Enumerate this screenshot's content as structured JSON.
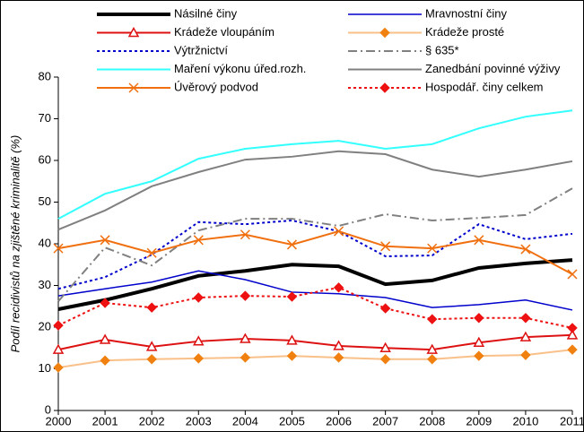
{
  "chart_data": {
    "type": "line",
    "y_label": "Podíl recidivistů na zjištěné kriminalitě (%)",
    "categories": [
      "2000",
      "2001",
      "2002",
      "2003",
      "2004",
      "2005",
      "2006",
      "2007",
      "2008",
      "2009",
      "2010",
      "2011"
    ],
    "ylim": [
      0,
      80
    ],
    "yticks": [
      0,
      10,
      20,
      30,
      40,
      50,
      60,
      70,
      80
    ],
    "grid": false,
    "series": [
      {
        "name": "Násilné činy",
        "color": "#000000",
        "width": 4,
        "dash": "solid",
        "marker": "none",
        "values": [
          24.3,
          26.5,
          29.2,
          32.3,
          33.5,
          35,
          34.6,
          30.3,
          31.2,
          34.2,
          35.3,
          36.1
        ]
      },
      {
        "name": "Mravnostní činy",
        "color": "#0000cc",
        "width": 1.5,
        "dash": "solid",
        "marker": "none",
        "values": [
          27.5,
          29.2,
          30.8,
          33.5,
          31.4,
          28.4,
          28,
          27.1,
          24.7,
          25.4,
          26.5,
          24.1
        ]
      },
      {
        "name": "Krádeže vloupáním",
        "color": "#dd1111",
        "width": 2,
        "dash": "solid",
        "marker": "triangle",
        "values": [
          14.6,
          17,
          15.3,
          16.6,
          17.2,
          16.8,
          15.5,
          15,
          14.6,
          16.3,
          17.6,
          18.1
        ]
      },
      {
        "name": "Krádeže prosté",
        "color": "#f9c089",
        "width": 2,
        "dash": "solid",
        "marker": "diamond",
        "marker_color": "#f08010",
        "values": [
          10.3,
          12,
          12.3,
          12.5,
          12.7,
          13.1,
          12.7,
          12.3,
          12.3,
          13.1,
          13.3,
          14.6
        ]
      },
      {
        "name": "Výtržnictví",
        "color": "#0000cc",
        "width": 2,
        "dash": "dot",
        "marker": "none",
        "values": [
          29.2,
          32,
          37.4,
          45.2,
          44.7,
          45.6,
          43,
          37,
          37.2,
          44.7,
          41.1,
          42.4
        ]
      },
      {
        "name": "§ 635*",
        "color": "#808080",
        "width": 2,
        "dash": "dashdot",
        "marker": "none",
        "values": [
          26.2,
          39.1,
          34.8,
          43.2,
          46,
          46,
          44.3,
          47.1,
          45.6,
          46.2,
          46.9,
          53.3
        ]
      },
      {
        "name": "Maření výkonu úřed.rozh.",
        "color": "#33ffff",
        "width": 2,
        "dash": "solid",
        "marker": "none",
        "values": [
          46,
          52,
          55,
          60.4,
          62.8,
          63.9,
          64.7,
          62.8,
          63.9,
          67.7,
          70.5,
          72
        ]
      },
      {
        "name": "Zanedbání povinné výživy",
        "color": "#808080",
        "width": 2,
        "dash": "solid",
        "marker": "none",
        "values": [
          43.4,
          48,
          53.8,
          57.2,
          60.2,
          60.9,
          62.2,
          61.5,
          57.8,
          56.1,
          57.8,
          59.8
        ]
      },
      {
        "name": "Úvěrový podvod",
        "color": "#f07010",
        "width": 2,
        "dash": "solid",
        "marker": "x",
        "values": [
          38.9,
          40.9,
          37.8,
          40.9,
          42.2,
          39.8,
          43,
          39.4,
          38.9,
          40.9,
          38.7,
          32.7
        ]
      },
      {
        "name": "Hospodář. činy celkem",
        "color": "#ee1111",
        "width": 2,
        "dash": "dot",
        "marker": "diamond",
        "values": [
          20.4,
          25.8,
          24.7,
          27.1,
          27.5,
          27.3,
          29.5,
          24.5,
          21.9,
          22.2,
          22.2,
          19.8
        ]
      }
    ]
  }
}
